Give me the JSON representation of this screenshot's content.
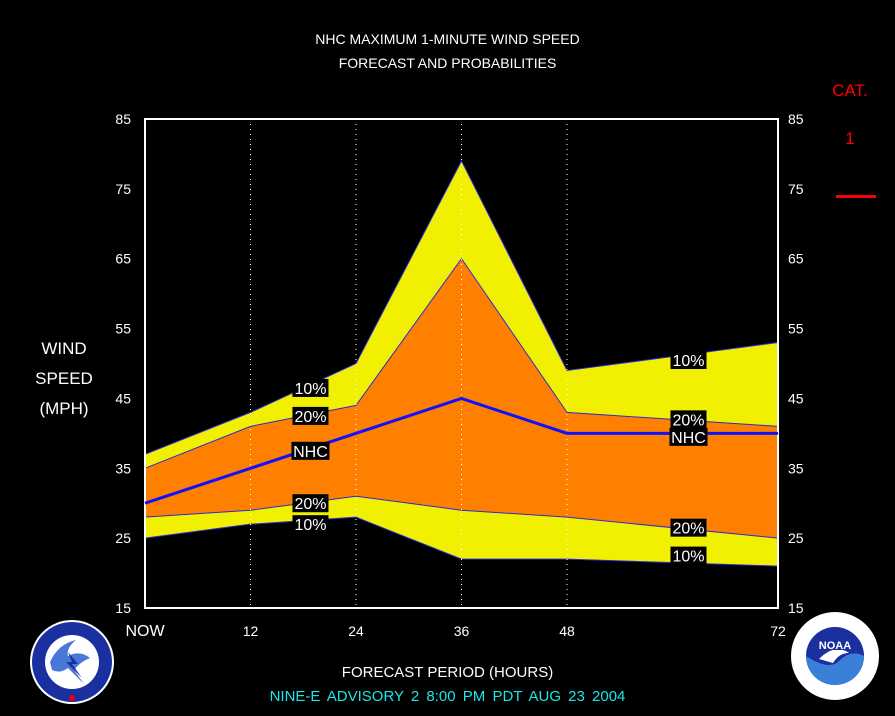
{
  "title_line1": "NHC MAXIMUM 1-MINUTE WIND SPEED",
  "title_line2": "FORECAST AND PROBABILITIES",
  "ylabel": [
    "WIND",
    "SPEED",
    "(MPH)"
  ],
  "xlabel": "FORECAST PERIOD (HOURS)",
  "cat_title": "CAT.",
  "cat_value": "1",
  "footer": "NINE-E   ADVISORY  2 8:00  PM  PDT  AUG  23  2004",
  "colors": {
    "yellow": "#f0f000",
    "orange": "#ff8000",
    "nhc_line": "#1010ff",
    "category_line": "#ff0000",
    "footer": "#19e6e6"
  },
  "icons": [
    "nws-logo-icon",
    "noaa-logo-icon"
  ],
  "chart_data": {
    "type": "area",
    "x": [
      0,
      12,
      24,
      36,
      48,
      72
    ],
    "x_tick_labels": [
      "NOW",
      "12",
      "24",
      "36",
      "48",
      "72"
    ],
    "xlim": [
      0,
      72
    ],
    "ylim": [
      15,
      85
    ],
    "y_ticks": [
      15,
      25,
      35,
      45,
      55,
      65,
      75,
      85
    ],
    "grid": "dotted vertical lines at forecast hours",
    "series": [
      {
        "name": "10%",
        "values": [
          37,
          43,
          50,
          79,
          49,
          53
        ]
      },
      {
        "name": "20%",
        "values": [
          35,
          41,
          44,
          65,
          43,
          41
        ]
      },
      {
        "name": "NHC",
        "values": [
          30,
          35,
          40,
          45,
          40,
          40
        ]
      },
      {
        "name": "20%",
        "values": [
          28,
          29,
          31,
          29,
          28,
          25
        ]
      },
      {
        "name": "10%",
        "values": [
          25,
          27,
          28,
          22,
          22,
          21
        ]
      }
    ],
    "labels": [
      {
        "text": "10%",
        "x": 17,
        "y": 46.5
      },
      {
        "text": "20%",
        "x": 17,
        "y": 42.5
      },
      {
        "text": "NHC",
        "x": 17,
        "y": 37.5
      },
      {
        "text": "20%",
        "x": 17,
        "y": 30
      },
      {
        "text": "10%",
        "x": 17,
        "y": 27
      },
      {
        "text": "10%",
        "x": 60,
        "y": 50.5
      },
      {
        "text": "20%",
        "x": 60,
        "y": 42
      },
      {
        "text": "NHC",
        "x": 60,
        "y": 39.5
      },
      {
        "text": "20%",
        "x": 60,
        "y": 26.5
      },
      {
        "text": "10%",
        "x": 60,
        "y": 22.5
      }
    ]
  }
}
